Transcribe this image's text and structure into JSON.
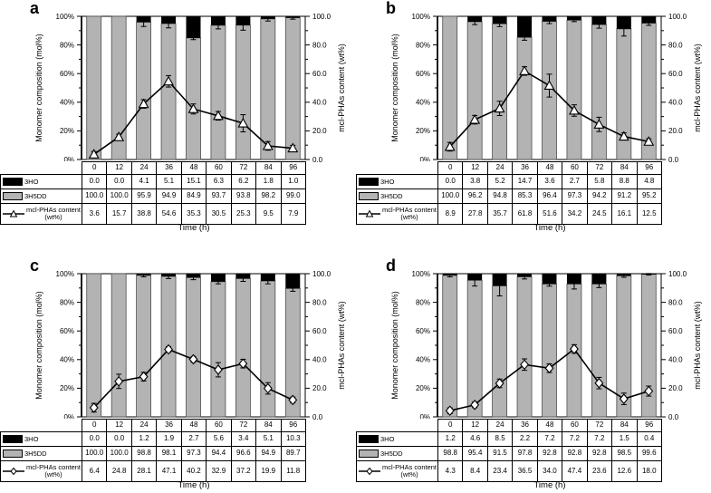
{
  "figure": {
    "xlabel": "Time (h)",
    "ylabel_left": "Monomer composition (mol%)",
    "ylabel_right": "mcl-PHAs content (wt%)",
    "yticks_left": [
      "0%",
      "20%",
      "40%",
      "60%",
      "80%",
      "100%"
    ],
    "yticks_right": [
      "0.0",
      "20.0",
      "40.0",
      "60.0",
      "80.0",
      "100.0"
    ],
    "colors": {
      "bar_3ho": "#000000",
      "bar_3h5dd": "#b3b3b3",
      "bar_outline": "#4d4d4d",
      "line": "#000000",
      "marker_fill": "#ffffff"
    }
  },
  "chart_data": [
    {
      "panel": "a",
      "type": "bar",
      "subtype": "stacked-bars-with-line-overlay",
      "categories": [
        "0",
        "12",
        "24",
        "36",
        "48",
        "60",
        "72",
        "84",
        "96"
      ],
      "ylim_left": [
        0,
        100
      ],
      "ylim_right": [
        0,
        100
      ],
      "grid": false,
      "legend_position": "table-left-column",
      "series": [
        {
          "name": "3HO",
          "kind": "bar",
          "axis": "left",
          "values": [
            "0.0",
            "0.0",
            "4.1",
            "5.1",
            "15.1",
            "6.3",
            "6.2",
            "1.8",
            "1.0"
          ]
        },
        {
          "name": "3H5DD",
          "kind": "bar",
          "axis": "left",
          "values": [
            "100.0",
            "100.0",
            "95.9",
            "94.9",
            "84.9",
            "93.7",
            "93.8",
            "98.2",
            "99.0"
          ],
          "errors_est": [
            0,
            0,
            3,
            3,
            1.2,
            2.5,
            3.5,
            1.5,
            1
          ]
        },
        {
          "name": "mcl-PHAs content (wt%)",
          "kind": "line",
          "marker": "triangle",
          "axis": "right",
          "values": [
            "3.6",
            "15.7",
            "38.8",
            "54.6",
            "35.3",
            "30.5",
            "25.3",
            "9.5",
            "7.9"
          ],
          "errors_est": [
            2,
            2,
            3,
            4,
            3.5,
            3,
            6,
            3,
            2
          ]
        }
      ]
    },
    {
      "panel": "b",
      "type": "bar",
      "subtype": "stacked-bars-with-line-overlay",
      "categories": [
        "0",
        "12",
        "24",
        "36",
        "48",
        "60",
        "72",
        "84",
        "96"
      ],
      "ylim_left": [
        0,
        100
      ],
      "ylim_right": [
        0,
        100
      ],
      "grid": false,
      "legend_position": "table-left-column",
      "series": [
        {
          "name": "3HO",
          "kind": "bar",
          "axis": "left",
          "values": [
            "0.0",
            "3.8",
            "5.2",
            "14.7",
            "3.6",
            "2.7",
            "5.8",
            "8.8",
            "4.8"
          ]
        },
        {
          "name": "3H5DD",
          "kind": "bar",
          "axis": "left",
          "values": [
            "100.0",
            "96.2",
            "94.8",
            "85.3",
            "96.4",
            "97.3",
            "94.2",
            "91.2",
            "95.2"
          ],
          "errors_est": [
            0,
            2,
            2,
            2,
            1.5,
            1,
            2.5,
            5,
            1.5
          ]
        },
        {
          "name": "mcl-PHAs content (wt%)",
          "kind": "line",
          "marker": "triangle",
          "axis": "right",
          "values": [
            "8.9",
            "27.8",
            "35.7",
            "61.8",
            "51.6",
            "34.2",
            "24.5",
            "16.1",
            "12.5"
          ],
          "errors_est": [
            3,
            3,
            5,
            3,
            8,
            4,
            5,
            2.5,
            2
          ]
        }
      ]
    },
    {
      "panel": "c",
      "type": "bar",
      "subtype": "stacked-bars-with-line-overlay",
      "categories": [
        "0",
        "12",
        "24",
        "36",
        "48",
        "60",
        "72",
        "84",
        "96"
      ],
      "ylim_left": [
        0,
        100
      ],
      "ylim_right": [
        0,
        100
      ],
      "grid": false,
      "legend_position": "table-left-column",
      "series": [
        {
          "name": "3HO",
          "kind": "bar",
          "axis": "left",
          "values": [
            "0.0",
            "0.0",
            "1.2",
            "1.9",
            "2.7",
            "5.6",
            "3.4",
            "5.1",
            "10.3"
          ]
        },
        {
          "name": "3H5DD",
          "kind": "bar",
          "axis": "left",
          "values": [
            "100.0",
            "100.0",
            "98.8",
            "98.1",
            "97.3",
            "94.4",
            "96.6",
            "94.9",
            "89.7"
          ],
          "errors_est": [
            0,
            0,
            1,
            1.5,
            1.5,
            1.5,
            2,
            2,
            2
          ]
        },
        {
          "name": "mcl-PHAs content (wt%)",
          "kind": "line",
          "marker": "diamond",
          "axis": "right",
          "values": [
            "6.4",
            "24.8",
            "28.1",
            "47.1",
            "40.2",
            "32.9",
            "37.2",
            "19.9",
            "11.8"
          ],
          "errors_est": [
            3,
            5,
            3,
            2,
            2,
            5,
            3,
            4,
            2
          ]
        }
      ]
    },
    {
      "panel": "d",
      "type": "bar",
      "subtype": "stacked-bars-with-line-overlay",
      "categories": [
        "0",
        "12",
        "24",
        "36",
        "48",
        "60",
        "72",
        "84",
        "96"
      ],
      "ylim_left": [
        0,
        100
      ],
      "ylim_right": [
        0,
        100
      ],
      "grid": false,
      "legend_position": "table-left-column",
      "series": [
        {
          "name": "3HO",
          "kind": "bar",
          "axis": "left",
          "values": [
            "1.2",
            "4.6",
            "8.5",
            "2.2",
            "7.2",
            "7.2",
            "7.2",
            "1.5",
            "0.4"
          ]
        },
        {
          "name": "3H5DD",
          "kind": "bar",
          "axis": "left",
          "values": [
            "98.8",
            "95.4",
            "91.5",
            "97.8",
            "92.8",
            "92.8",
            "92.8",
            "98.5",
            "99.6"
          ],
          "errors_est": [
            1,
            4,
            7,
            1.5,
            1.5,
            3.5,
            2.5,
            1,
            0.5
          ]
        },
        {
          "name": "mcl-PHAs content (wt%)",
          "kind": "line",
          "marker": "diamond",
          "axis": "right",
          "values": [
            "4.3",
            "8.4",
            "23.4",
            "36.5",
            "34.0",
            "47.4",
            "23.6",
            "12.6",
            "18.0"
          ],
          "errors_est": [
            2,
            2,
            3,
            4,
            3,
            3,
            4,
            4,
            3.5
          ]
        }
      ]
    }
  ]
}
